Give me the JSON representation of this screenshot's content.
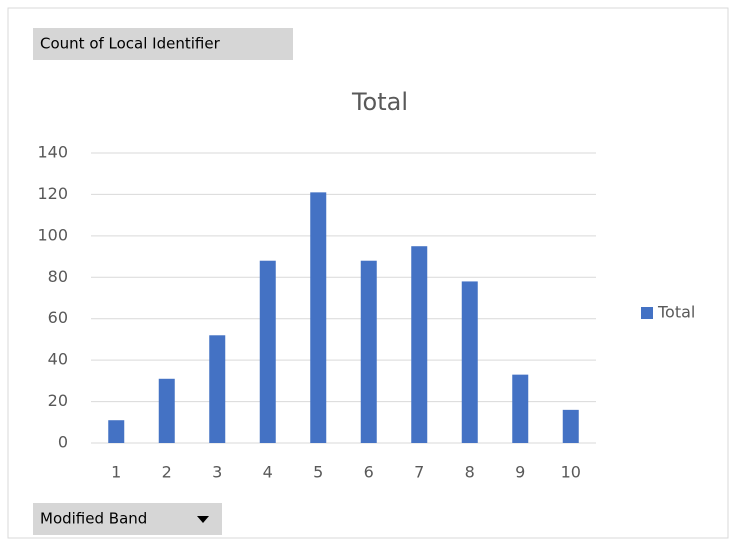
{
  "chart_data": {
    "type": "bar",
    "title": "Total",
    "value_field_button": "Count of Local Identifier",
    "axis_field_button": "Modified Band",
    "categories": [
      "1",
      "2",
      "3",
      "4",
      "5",
      "6",
      "7",
      "8",
      "9",
      "10"
    ],
    "series": [
      {
        "name": "Total",
        "color": "#4472c4",
        "values": [
          11,
          31,
          52,
          88,
          121,
          88,
          95,
          78,
          33,
          16
        ]
      }
    ],
    "ylim": [
      0,
      140
    ],
    "yticks": [
      0,
      20,
      40,
      60,
      80,
      100,
      120,
      140
    ],
    "grid": true,
    "legend": "right"
  }
}
